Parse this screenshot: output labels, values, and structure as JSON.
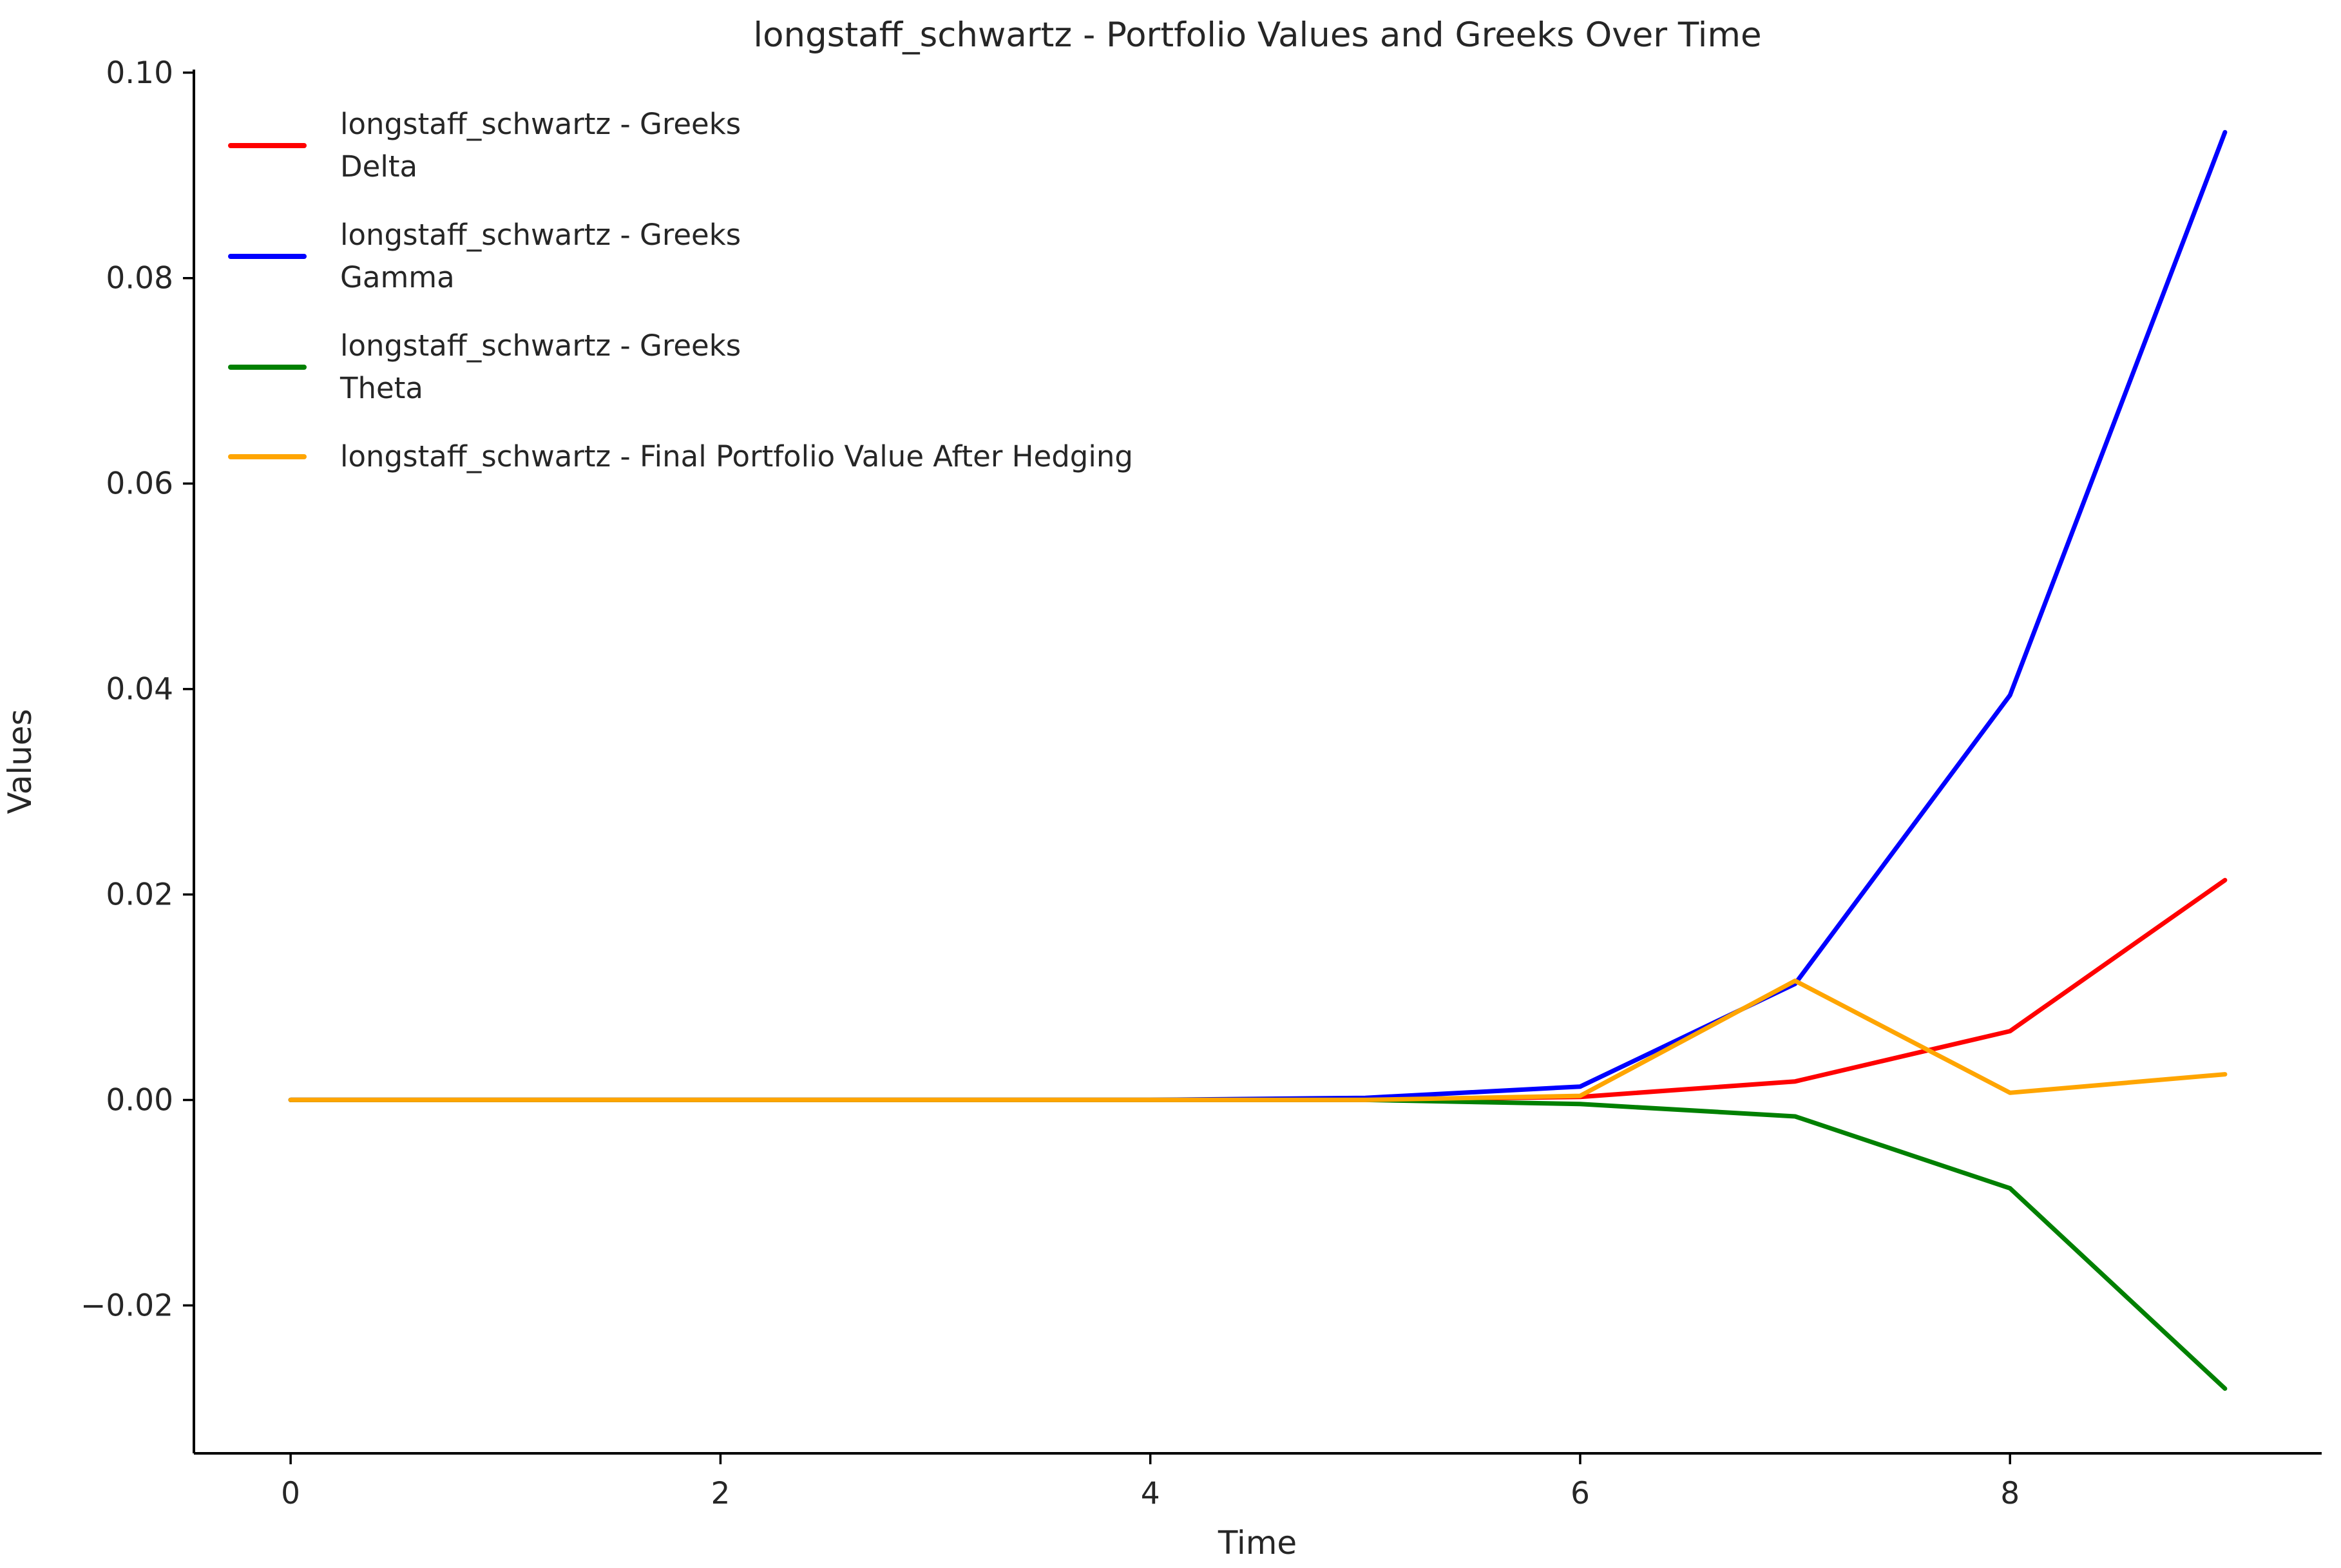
{
  "figure": {
    "title": "longstaff_schwartz - Portfolio Values and Greeks Over Time",
    "xlabel": "Time",
    "ylabel": "Values",
    "background_color": "#ffffff",
    "text_color": "#262626",
    "axis_color": "#000000"
  },
  "chart_data": {
    "type": "line",
    "title": "longstaff_schwartz - Portfolio Values and Greeks Over Time",
    "xlabel": "Time",
    "ylabel": "Values",
    "grid": false,
    "legend_position": "upper-left",
    "x": [
      0,
      1,
      2,
      3,
      4,
      5,
      6,
      7,
      8,
      9
    ],
    "xticks": [
      0,
      2,
      4,
      6,
      8
    ],
    "xtick_labels": [
      "0",
      "2",
      "4",
      "6",
      "8"
    ],
    "yticks": [
      0.1,
      0.08,
      0.06,
      0.04,
      0.02,
      0.0,
      -0.02
    ],
    "ytick_labels": [
      "0.10",
      "0.08",
      "0.06",
      "0.04",
      "0.02",
      "0.00",
      "−0.02"
    ],
    "xlim": [
      -0.45,
      9.45
    ],
    "ylim": [
      -0.0344,
      0.1003
    ],
    "series": [
      {
        "id": "delta",
        "name": "longstaff_schwartz - Greeks Delta",
        "legend_lines": [
          "longstaff_schwartz - Greeks",
          "Delta"
        ],
        "color": "#ff0000",
        "values": [
          0,
          0,
          0,
          0,
          0,
          0,
          0.0003,
          0.0018,
          0.0067,
          0.0214
        ]
      },
      {
        "id": "gamma",
        "name": "longstaff_schwartz - Greeks Gamma",
        "legend_lines": [
          "longstaff_schwartz - Greeks",
          "Gamma"
        ],
        "color": "#0000ff",
        "values": [
          0,
          0,
          0,
          0,
          0,
          0.0002,
          0.0013,
          0.0113,
          0.0394,
          0.0942
        ]
      },
      {
        "id": "theta",
        "name": "longstaff_schwartz - Greeks Theta",
        "legend_lines": [
          "longstaff_schwartz - Greeks",
          "Theta"
        ],
        "color": "#008000",
        "values": [
          0,
          0,
          0,
          0,
          0,
          0,
          -0.0004,
          -0.0016,
          -0.0086,
          -0.0281
        ]
      },
      {
        "id": "portfolio-value",
        "name": "longstaff_schwartz - Final Portfolio Value After Hedging",
        "legend_lines": [
          "longstaff_schwartz - Final Portfolio Value After Hedging"
        ],
        "color": "#ffa500",
        "values": [
          0,
          0,
          0,
          0,
          0,
          0,
          0.0004,
          0.0116,
          0.0007,
          0.0025
        ]
      }
    ]
  }
}
